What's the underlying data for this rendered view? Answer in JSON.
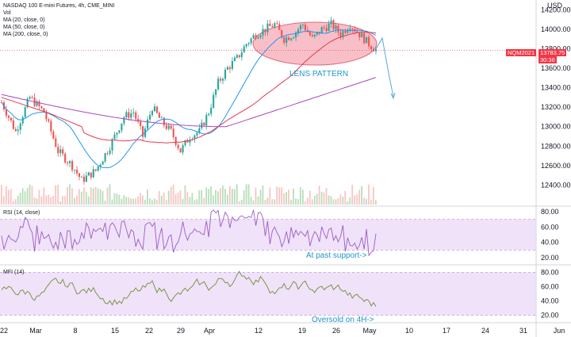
{
  "header": {
    "title_line": "NASDAQ 100 E-mini Futures, 4h, CME_MINI",
    "studies": [
      "Vol",
      "MA (20, close, 0)",
      "MA (50, close, 0)",
      "MA (200, close, 0)"
    ]
  },
  "price_axis": {
    "currency": "USD"
  },
  "badges": {
    "symbol": "NQM2021",
    "price": "13783.75",
    "timer": "30:36"
  },
  "annotations": {
    "lens": "LENS PATTERN",
    "rsi_note": "At past support->",
    "mfi_note": "Oversold on 4H->"
  },
  "rsi_label": "RSI (14, close)",
  "mfi_label": "MFI (14)",
  "colors": {
    "up": "#26a69a",
    "down": "#ef5350",
    "ma20": "#2196f3",
    "ma50": "#e53950",
    "ma200": "#ab47bc",
    "osc": "#6b8e3a",
    "band": "#e9d5f5",
    "ellipse": "#f28a9b",
    "arrow": "#5aa9dc"
  },
  "chart_data": [
    {
      "type": "candlestick",
      "title": "NASDAQ 100 E-mini Futures, 4h, CME_MINI",
      "ylim": [
        12200,
        14300
      ],
      "y_ticks": [
        12400,
        12600,
        12800,
        13000,
        13200,
        13400,
        13600,
        13800,
        14000,
        14200
      ],
      "x_ticks": [
        "22",
        "Mar",
        "8",
        "15",
        "22",
        "29",
        "Apr",
        "12",
        "19",
        "26",
        "May",
        "10",
        "17",
        "24",
        "31",
        "Jun"
      ],
      "last_price": 13783.75,
      "series": [
        {
          "name": "MA (20, close, 0)"
        },
        {
          "name": "MA (50, close, 0)"
        },
        {
          "name": "MA (200, close, 0)"
        }
      ]
    },
    {
      "type": "line",
      "name": "RSI (14, close)",
      "ylim": [
        15,
        85
      ],
      "y_ticks": [
        20,
        40,
        60,
        80
      ],
      "band": [
        30,
        70
      ]
    },
    {
      "type": "line",
      "name": "MFI (14)",
      "ylim": [
        12,
        88
      ],
      "y_ticks": [
        20,
        40,
        60,
        80
      ],
      "band": [
        20,
        80
      ]
    }
  ]
}
